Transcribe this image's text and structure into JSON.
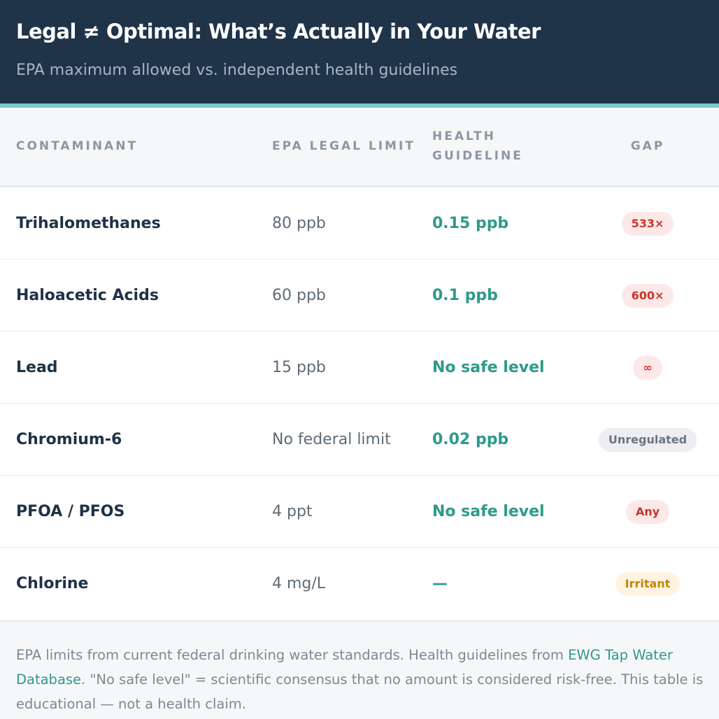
{
  "header": {
    "title": "Legal ≠ Optimal: What’s Actually in Your Water",
    "subtitle": "EPA maximum allowed vs. independent health guidelines"
  },
  "colors": {
    "header_bg": "#1f3349",
    "accent": "#7cc9c7",
    "health_green": "#2e9a8a",
    "badge_red": "#c8372d",
    "badge_gray": "#6b7580",
    "badge_amber": "#c0860e"
  },
  "table": {
    "columns": [
      "Contaminant",
      "EPA Legal Limit",
      "Health Guideline",
      "Gap"
    ],
    "rows": [
      {
        "contaminant": "Trihalomethanes",
        "epa": "80 ppb",
        "health": "0.15 ppb",
        "gap": "533×",
        "gap_style": "red"
      },
      {
        "contaminant": "Haloacetic Acids",
        "epa": "60 ppb",
        "health": "0.1 ppb",
        "gap": "600×",
        "gap_style": "red"
      },
      {
        "contaminant": "Lead",
        "epa": "15 ppb",
        "health": "No safe level",
        "gap": "∞",
        "gap_style": "red"
      },
      {
        "contaminant": "Chromium-6",
        "epa": "No federal limit",
        "health": "0.02 ppb",
        "gap": "Unregulated",
        "gap_style": "gray"
      },
      {
        "contaminant": "PFOA / PFOS",
        "epa": "4 ppt",
        "health": "No safe level",
        "gap": "Any",
        "gap_style": "red"
      },
      {
        "contaminant": "Chlorine",
        "epa": "4 mg/L",
        "health": "—",
        "gap": "Irritant",
        "gap_style": "amber"
      }
    ]
  },
  "footer": {
    "text_before_link": "EPA limits from current federal drinking water standards. Health guidelines from ",
    "link_text": "EWG Tap Water Database",
    "text_after_link": ". \"No safe level\" = scientific consensus that no amount is considered risk-free. This table is educational — not a health claim."
  }
}
